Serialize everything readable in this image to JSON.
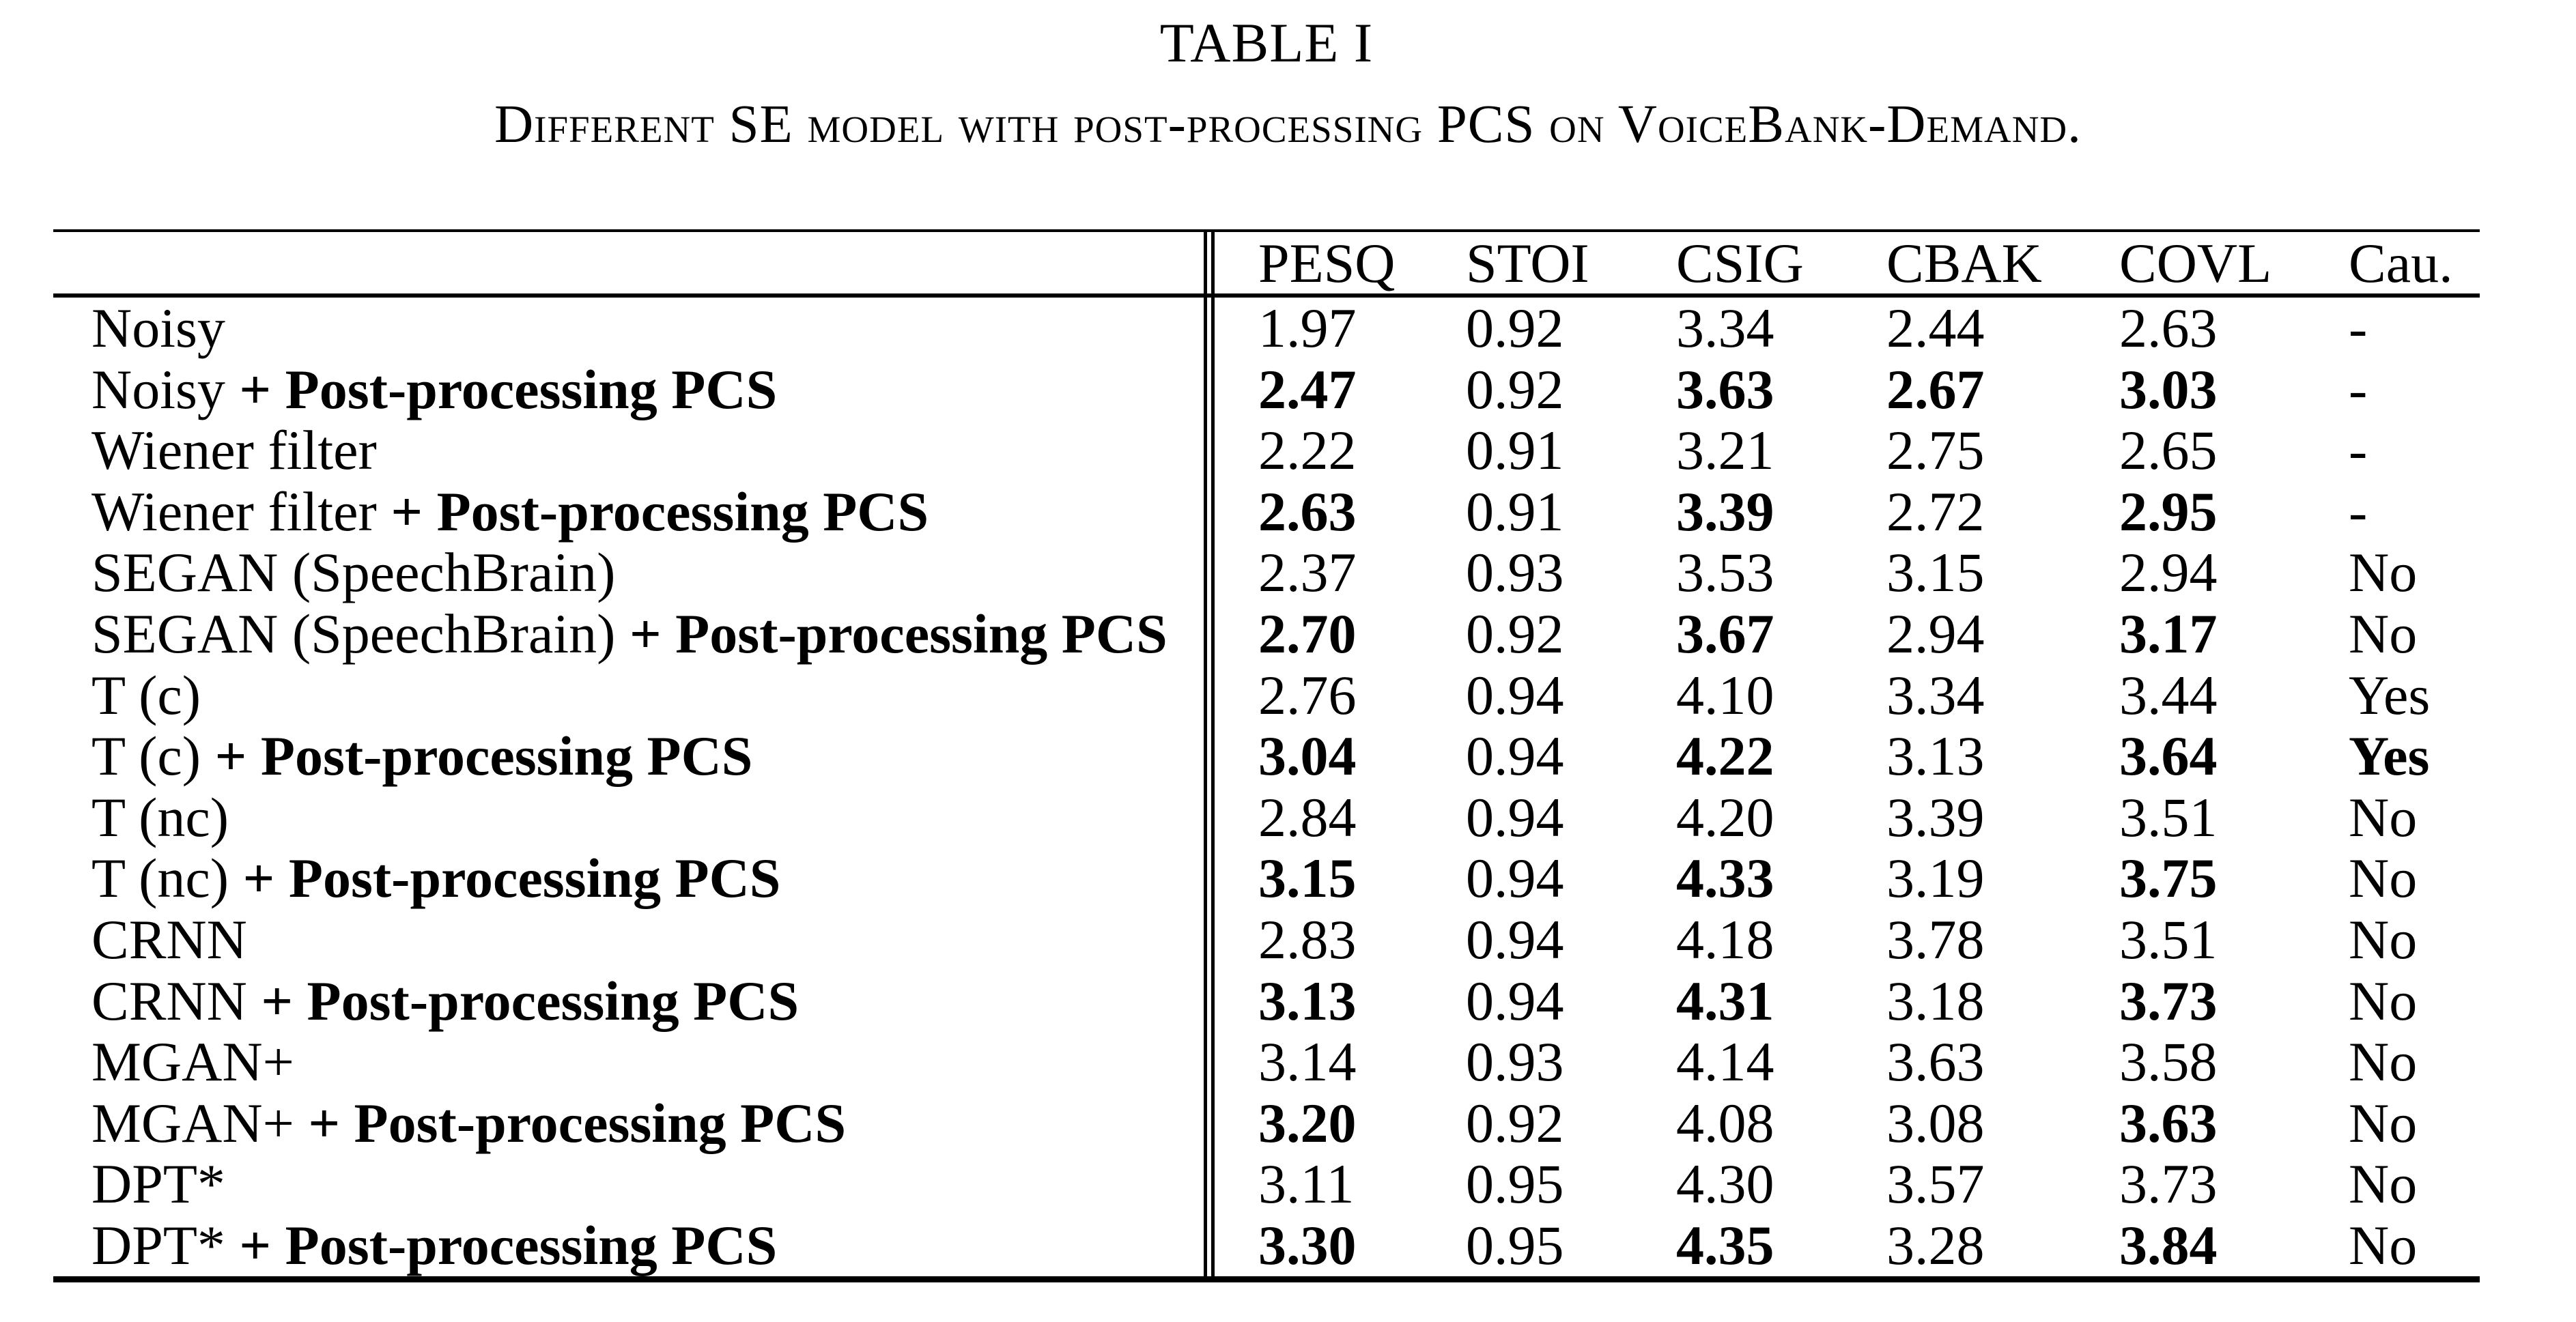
{
  "page": {
    "title": "TABLE I",
    "subtitle": "Different SE model with post-processing PCS on VoiceBank-Demand."
  },
  "table": {
    "columns": [
      "PESQ",
      "STOI",
      "CSIG",
      "CBAK",
      "COVL",
      "Cau."
    ],
    "rows": [
      {
        "label": "Noisy",
        "label_bold": "",
        "values": [
          "1.97",
          "0.92",
          "3.34",
          "2.44",
          "2.63",
          "-"
        ],
        "bold": [
          false,
          false,
          false,
          false,
          false,
          false
        ]
      },
      {
        "label": "Noisy ",
        "label_bold": "+ Post-processing PCS",
        "values": [
          "2.47",
          "0.92",
          "3.63",
          "2.67",
          "3.03",
          "-"
        ],
        "bold": [
          true,
          false,
          true,
          true,
          true,
          false
        ]
      },
      {
        "label": "Wiener filter",
        "label_bold": "",
        "values": [
          "2.22",
          "0.91",
          "3.21",
          "2.75",
          "2.65",
          "-"
        ],
        "bold": [
          false,
          false,
          false,
          false,
          false,
          false
        ]
      },
      {
        "label": "Wiener filter ",
        "label_bold": "+ Post-processing PCS",
        "values": [
          "2.63",
          "0.91",
          "3.39",
          "2.72",
          "2.95",
          "-"
        ],
        "bold": [
          true,
          false,
          true,
          false,
          true,
          false
        ]
      },
      {
        "label": "SEGAN (SpeechBrain)",
        "label_bold": "",
        "values": [
          "2.37",
          "0.93",
          "3.53",
          "3.15",
          "2.94",
          "No"
        ],
        "bold": [
          false,
          false,
          false,
          false,
          false,
          false
        ]
      },
      {
        "label": "SEGAN (SpeechBrain) ",
        "label_bold": "+ Post-processing PCS",
        "values": [
          "2.70",
          "0.92",
          "3.67",
          "2.94",
          "3.17",
          "No"
        ],
        "bold": [
          true,
          false,
          true,
          false,
          true,
          false
        ]
      },
      {
        "label": "T (c)",
        "label_bold": "",
        "values": [
          "2.76",
          "0.94",
          "4.10",
          "3.34",
          "3.44",
          "Yes"
        ],
        "bold": [
          false,
          false,
          false,
          false,
          false,
          false
        ]
      },
      {
        "label": "T (c) ",
        "label_bold": "+ Post-processing PCS",
        "values": [
          "3.04",
          "0.94",
          "4.22",
          "3.13",
          "3.64",
          "Yes"
        ],
        "bold": [
          true,
          false,
          true,
          false,
          true,
          true
        ]
      },
      {
        "label": "T (nc)",
        "label_bold": "",
        "values": [
          "2.84",
          "0.94",
          "4.20",
          "3.39",
          "3.51",
          "No"
        ],
        "bold": [
          false,
          false,
          false,
          false,
          false,
          false
        ]
      },
      {
        "label": "T (nc) ",
        "label_bold": "+ Post-processing PCS",
        "values": [
          "3.15",
          "0.94",
          "4.33",
          "3.19",
          "3.75",
          "No"
        ],
        "bold": [
          true,
          false,
          true,
          false,
          true,
          false
        ]
      },
      {
        "label": "CRNN",
        "label_bold": "",
        "values": [
          "2.83",
          "0.94",
          "4.18",
          "3.78",
          "3.51",
          "No"
        ],
        "bold": [
          false,
          false,
          false,
          false,
          false,
          false
        ]
      },
      {
        "label": "CRNN ",
        "label_bold": "+ Post-processing PCS",
        "values": [
          "3.13",
          "0.94",
          "4.31",
          "3.18",
          "3.73",
          "No"
        ],
        "bold": [
          true,
          false,
          true,
          false,
          true,
          false
        ]
      },
      {
        "label": "MGAN+",
        "label_bold": "",
        "values": [
          "3.14",
          "0.93",
          "4.14",
          "3.63",
          "3.58",
          "No"
        ],
        "bold": [
          false,
          false,
          false,
          false,
          false,
          false
        ]
      },
      {
        "label": "MGAN+ ",
        "label_bold": "+ Post-processing PCS",
        "values": [
          "3.20",
          "0.92",
          "4.08",
          "3.08",
          "3.63",
          "No"
        ],
        "bold": [
          true,
          false,
          false,
          false,
          true,
          false
        ]
      },
      {
        "label": "DPT*",
        "label_bold": "",
        "values": [
          "3.11",
          "0.95",
          "4.30",
          "3.57",
          "3.73",
          "No"
        ],
        "bold": [
          false,
          false,
          false,
          false,
          false,
          false
        ]
      },
      {
        "label": "DPT* ",
        "label_bold": "+ Post-processing PCS",
        "values": [
          "3.30",
          "0.95",
          "4.35",
          "3.28",
          "3.84",
          "No"
        ],
        "bold": [
          true,
          false,
          true,
          false,
          true,
          false
        ]
      }
    ]
  }
}
